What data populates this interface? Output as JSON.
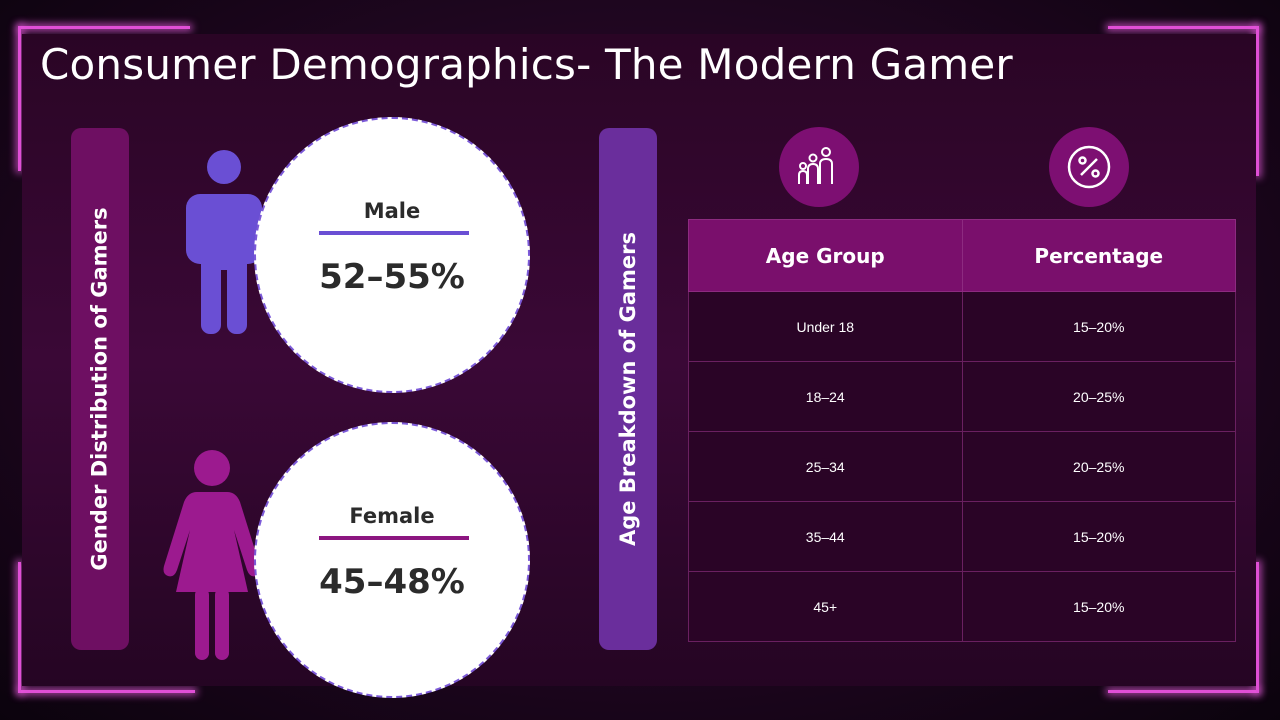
{
  "page": {
    "title": "Consumer Demographics- The Modern Gamer"
  },
  "gender_section": {
    "label": "Gender Distribution of Gamers",
    "male": {
      "label": "Male",
      "value": "52–55%"
    },
    "female": {
      "label": "Female",
      "value": "45–48%"
    }
  },
  "age_section": {
    "label": "Age Breakdown of Gamers",
    "icons": [
      "family-icon",
      "percent-icon"
    ],
    "headers": [
      "Age Group",
      "Percentage"
    ],
    "rows": [
      {
        "group": "Under 18",
        "percent": "15–20%"
      },
      {
        "group": "18–24",
        "percent": "20–25%"
      },
      {
        "group": "25–34",
        "percent": "20–25%"
      },
      {
        "group": "35–44",
        "percent": "15–20%"
      },
      {
        "group": "45+",
        "percent": "15–20%"
      }
    ]
  },
  "colors": {
    "accent_pink": "#e04fd6",
    "male": "#6a4fd4",
    "female": "#9c1a8f",
    "gender_bar": "#6e0f62",
    "age_bar": "#6a2e9c",
    "header": "#7a0f6c"
  }
}
